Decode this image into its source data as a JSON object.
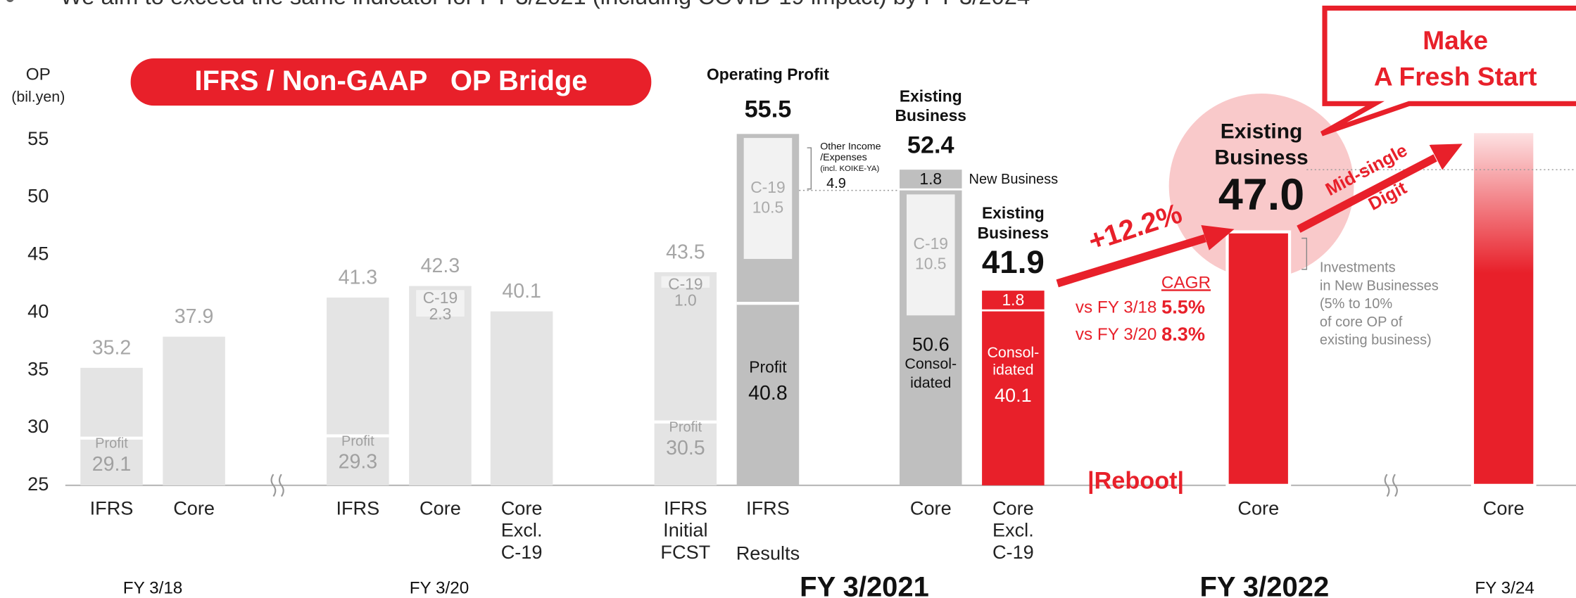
{
  "header": "We aim to exceed the same indicator for FY 3/2021 (including COVID-19 impact) by FY 3/2024",
  "chart_data": {
    "type": "bar",
    "title": "IFRS / Non-GAAP   OP Bridge",
    "y_label": [
      "OP",
      "(bil.yen)"
    ],
    "ylim": [
      25,
      57
    ],
    "yticks": [
      25,
      30,
      35,
      40,
      45,
      50,
      55
    ],
    "categories": [
      [
        "IFRS"
      ],
      [
        "Core"
      ],
      [
        "IFRS"
      ],
      [
        "Core"
      ],
      [
        "Core",
        "Excl.",
        "C-19"
      ],
      [
        "IFRS",
        "Initial",
        "FCST"
      ],
      [
        "IFRS"
      ],
      [
        "Core"
      ],
      [
        "Core",
        "Excl.",
        "C-19"
      ],
      [
        "Core"
      ],
      [
        "Core"
      ]
    ],
    "profit_label": "Profit",
    "c19_label": "C-19",
    "consolidated_label": [
      "Consol-",
      "idated"
    ],
    "bars": [
      {
        "total": 35.2,
        "profit": 29.1,
        "color": "#e4e4e4"
      },
      {
        "total": 37.9,
        "color": "#e4e4e4"
      },
      {
        "total": 41.3,
        "profit": 29.3,
        "color": "#e4e4e4"
      },
      {
        "total": 42.3,
        "c19": 2.3,
        "color": "#e4e4e4"
      },
      {
        "total": 40.1,
        "color": "#e4e4e4"
      },
      {
        "total": 43.5,
        "profit": 30.5,
        "c19": 1.0,
        "value_labels": {
          "c19": "1.0"
        },
        "color": "#e4e4e4"
      },
      {
        "heading": [
          "Operating Profit"
        ],
        "total": 55.5,
        "profit": 40.8,
        "c19": 10.5,
        "other_income": 4.9,
        "other_income_label": [
          "Other Income",
          "/Expenses",
          "(incl. KOIKE-YA)"
        ],
        "color": "#bfbfbf"
      },
      {
        "heading": [
          "Existing",
          "Business"
        ],
        "total": 52.4,
        "consolidated": 50.6,
        "new_business": 1.8,
        "new_business_label": "New Business",
        "c19": 10.5,
        "color": "#bfbfbf"
      },
      {
        "heading": [
          "Existing",
          "Business"
        ],
        "total": 41.9,
        "consolidated": 40.1,
        "new_business": 1.8,
        "color": "#e8202a"
      },
      {
        "heading": [
          "Existing",
          "Business"
        ],
        "total": 47.0,
        "value_labels": {
          "total": "47.0"
        },
        "color": "#e8202a"
      },
      {
        "total": 55.7,
        "color": "#e8202a",
        "gradient": true
      }
    ],
    "results_label": "Results",
    "group_labels": [
      {
        "text": "FY 3/18"
      },
      {
        "text": "FY 3/20"
      },
      {
        "text": "FY 3/2021",
        "bold": true
      },
      {
        "text": "FY 3/2022",
        "bold": true
      },
      {
        "text": "FY 3/24"
      }
    ],
    "growth": "+12.2%",
    "cagr": {
      "title": "CAGR",
      "rows": [
        [
          "vs FY 3/18 ",
          "5.5%"
        ],
        [
          "vs FY 3/20 ",
          "8.3%"
        ]
      ]
    },
    "reboot": "|Reboot|",
    "mid_single": [
      "Mid-single",
      "Digit"
    ],
    "callout": [
      "Make",
      "A Fresh Start"
    ],
    "investments": [
      "Investments",
      "in New Businesses",
      "(5% to 10%",
      "of core OP of",
      "existing business)"
    ]
  }
}
